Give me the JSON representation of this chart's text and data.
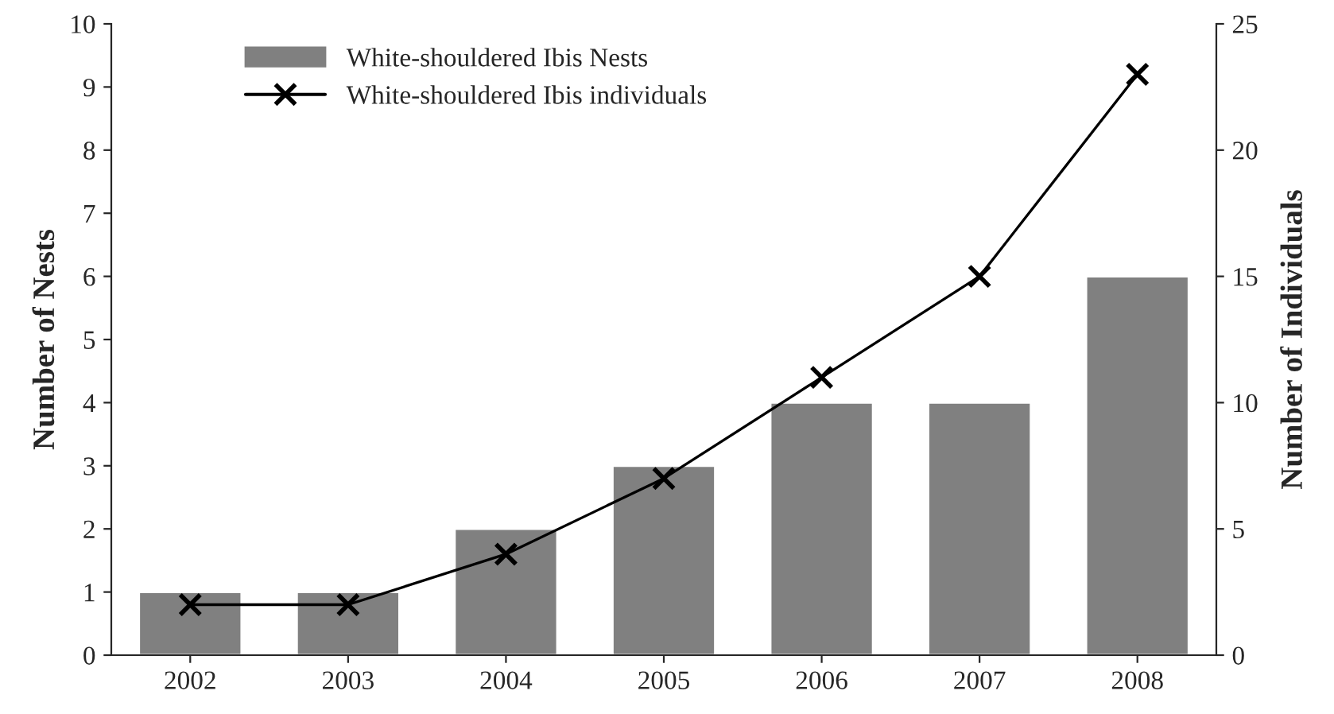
{
  "chart_data": {
    "type": "bar",
    "ylabel": "Number of Nests",
    "y2label": "Number of Individuals",
    "categories": [
      "2002",
      "2003",
      "2004",
      "2005",
      "2006",
      "2007",
      "2008"
    ],
    "series": [
      {
        "name": "White-shouldered Ibis Nests",
        "color": "#808080",
        "values": [
          1,
          1,
          2,
          3,
          4,
          4,
          6
        ]
      },
      {
        "name": "White-shouldered Ibis individuals",
        "type": "line",
        "axis": "y2",
        "color": "#000000",
        "marker": "cross",
        "line_style": "solid",
        "values": [
          2,
          2,
          4,
          7,
          11,
          15,
          23
        ]
      }
    ],
    "ylim": [
      0,
      10
    ],
    "yticks": [
      0,
      1,
      2,
      3,
      4,
      5,
      6,
      7,
      8,
      9,
      10
    ],
    "y2lim": [
      0,
      25
    ],
    "y2ticks": [
      0,
      5,
      10,
      15,
      20,
      25
    ],
    "grid": false,
    "legend": "top left"
  }
}
